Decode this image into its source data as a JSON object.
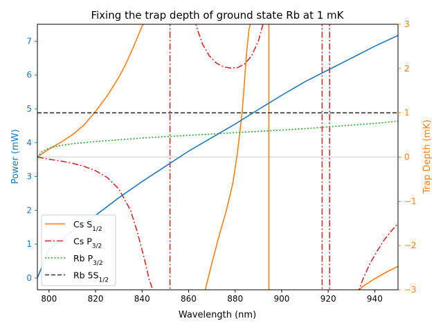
{
  "chart_data": {
    "type": "line",
    "title": "Fixing the trap depth of ground state Rb at 1 mK",
    "xlabel": "Wavelength (nm)",
    "ylabel_left": "Power (mW)",
    "ylabel_right": "Trap Depth (mK)",
    "xlim": [
      795,
      950
    ],
    "ylim_left": [
      -0.35,
      7.5
    ],
    "ylim_right": [
      -3,
      3
    ],
    "x_ticks": [
      800,
      820,
      840,
      860,
      880,
      900,
      920,
      940
    ],
    "x_tick_labels": [
      "800",
      "820",
      "840",
      "860",
      "880",
      "900",
      "920",
      "940"
    ],
    "y_left_ticks": [
      0,
      1,
      2,
      3,
      4,
      5,
      6,
      7
    ],
    "y_left_tick_labels": [
      "0",
      "1",
      "2",
      "3",
      "4",
      "5",
      "6",
      "7"
    ],
    "y_right_ticks": [
      -3,
      -2,
      -1,
      0,
      1,
      2,
      3
    ],
    "y_right_tick_labels": [
      "−3",
      "−2",
      "−1",
      "0",
      "1",
      "2",
      "3"
    ],
    "grid": false,
    "legend_position": "lower-left",
    "power_curve": {
      "axis": "left",
      "color": "#1f77b4",
      "x": [
        795,
        800,
        810,
        820,
        830,
        840,
        850,
        860,
        870,
        880,
        890,
        900,
        910,
        920,
        930,
        940,
        950
      ],
      "y": [
        0.0,
        0.85,
        1.38,
        1.85,
        2.37,
        2.85,
        3.3,
        3.75,
        4.15,
        4.55,
        4.98,
        5.4,
        5.8,
        6.15,
        6.5,
        6.85,
        7.17
      ]
    },
    "series": [
      {
        "name": "Cs S1/2",
        "legend_main": "Cs S",
        "legend_sub": "1/2",
        "axis": "right",
        "color": "#ff7f0e",
        "style": "solid",
        "segments": [
          {
            "x": [
              795,
              800,
              805,
              810,
              815,
              820,
              825,
              830,
              833,
              836,
              838,
              840,
              842
            ],
            "y": [
              0.0,
              0.18,
              0.33,
              0.5,
              0.72,
              1.03,
              1.38,
              1.8,
              2.1,
              2.45,
              2.7,
              2.96,
              3.1
            ]
          },
          {
            "x": [
              866.7,
              870,
              873,
              876,
              879,
              881,
              883,
              884,
              885,
              886,
              887
            ],
            "y": [
              -3.1,
              -2.4,
              -1.8,
              -1.25,
              -0.6,
              0.1,
              1.0,
              1.7,
              2.4,
              2.9,
              3.1
            ]
          },
          {
            "x": [
              894.5,
              894.5
            ],
            "y": [
              3.1,
              -3.1
            ]
          },
          {
            "x": [
              931,
              935,
              940,
              945,
              950
            ],
            "y": [
              -3.1,
              -2.92,
              -2.75,
              -2.6,
              -2.47
            ]
          }
        ]
      },
      {
        "name": "Cs P3/2",
        "legend_main": "Cs P",
        "legend_sub": "3/2",
        "axis": "right",
        "color": "#d62728",
        "style": "dashdot",
        "segments": [
          {
            "x": [
              795,
              800,
              805,
              810,
              815,
              820,
              825,
              830,
              835,
              838,
              841,
              843,
              845.2
            ],
            "y": [
              0.0,
              -0.05,
              -0.09,
              -0.14,
              -0.21,
              -0.31,
              -0.46,
              -0.72,
              -1.2,
              -1.7,
              -2.3,
              -2.75,
              -3.1
            ]
          },
          {
            "x": [
              852,
              852
            ],
            "y": [
              3.1,
              -3.1
            ]
          },
          {
            "x": [
              862.5,
              864,
              866,
              869,
              872,
              875,
              878,
              881,
              884,
              887,
              890,
              892.5
            ],
            "y": [
              3.1,
              2.85,
              2.55,
              2.28,
              2.12,
              2.04,
              2.01,
              2.02,
              2.1,
              2.28,
              2.62,
              3.1
            ]
          },
          {
            "x": [
              917.4,
              917.4
            ],
            "y": [
              3.1,
              -3.1
            ]
          },
          {
            "x": [
              920.6,
              920.6
            ],
            "y": [
              3.1,
              -3.1
            ]
          },
          {
            "x": [
              932.5,
              935,
              938,
              941,
              944,
              947,
              950
            ],
            "y": [
              -3.1,
              -2.75,
              -2.4,
              -2.13,
              -1.88,
              -1.68,
              -1.5
            ]
          }
        ]
      },
      {
        "name": "Rb P3/2",
        "legend_main": "Rb P",
        "legend_sub": "3/2",
        "axis": "right",
        "color": "#2ca02c",
        "style": "dotted",
        "segments": [
          {
            "x": [
              795,
              797,
              800,
              805,
              810,
              820,
              830,
              840,
              850,
              860,
              870,
              880,
              890,
              900,
              910,
              920,
              930,
              940,
              950
            ],
            "y": [
              0.0,
              0.12,
              0.2,
              0.26,
              0.3,
              0.35,
              0.39,
              0.43,
              0.46,
              0.49,
              0.52,
              0.55,
              0.58,
              0.61,
              0.64,
              0.68,
              0.72,
              0.76,
              0.81
            ]
          }
        ]
      },
      {
        "name": "Rb 5S1/2",
        "legend_main": "Rb 5S",
        "legend_sub": "1/2",
        "axis": "right",
        "color": "#333333",
        "style": "dashed",
        "segments": [
          {
            "x": [
              795,
              950
            ],
            "y": [
              1.0,
              1.0
            ]
          }
        ]
      }
    ],
    "reference_line": {
      "axis": "right",
      "y": 0,
      "color": "#d8d8d8"
    }
  }
}
